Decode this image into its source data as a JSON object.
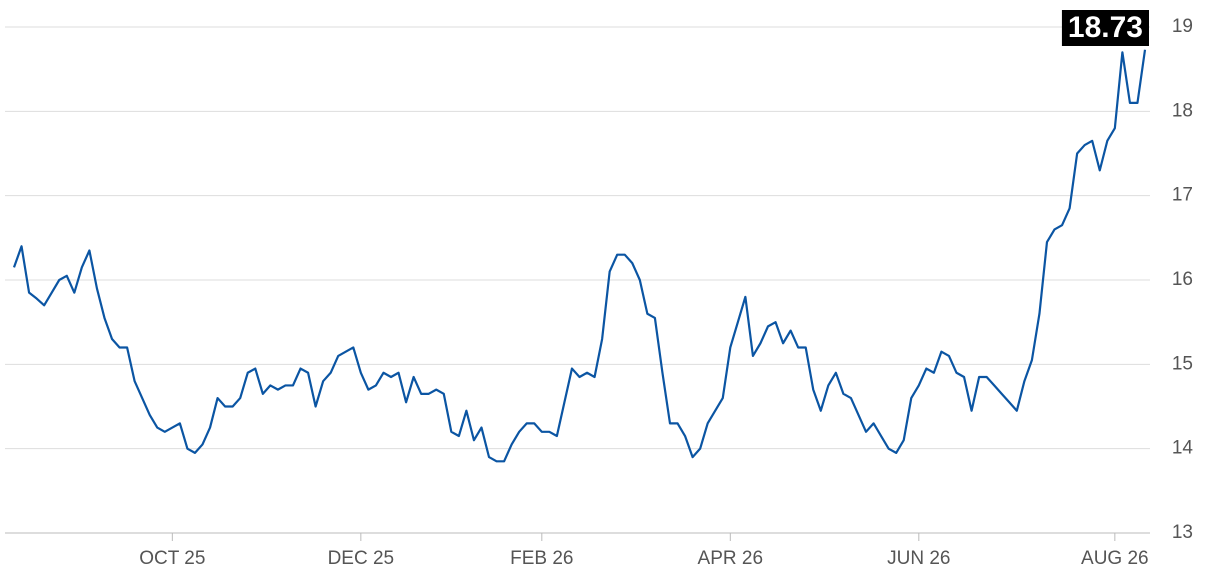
{
  "chart_data": {
    "type": "line",
    "categories": [
      null,
      null,
      null,
      null,
      null,
      null,
      null,
      null,
      null,
      null,
      null,
      null,
      null,
      null,
      null,
      null,
      null,
      null,
      null,
      null,
      null,
      "OCT 25",
      null,
      null,
      null,
      null,
      null,
      null,
      null,
      null,
      null,
      null,
      null,
      null,
      null,
      null,
      null,
      null,
      null,
      null,
      null,
      null,
      null,
      null,
      null,
      null,
      "DEC 25",
      null,
      null,
      null,
      null,
      null,
      null,
      null,
      null,
      null,
      null,
      null,
      null,
      null,
      null,
      null,
      null,
      null,
      null,
      null,
      null,
      null,
      null,
      null,
      "FEB 26",
      null,
      null,
      null,
      null,
      null,
      null,
      null,
      null,
      null,
      null,
      null,
      null,
      null,
      null,
      null,
      null,
      null,
      null,
      null,
      null,
      null,
      null,
      null,
      null,
      "APR 26",
      null,
      null,
      null,
      null,
      null,
      null,
      null,
      null,
      null,
      null,
      null,
      null,
      null,
      null,
      null,
      null,
      null,
      null,
      null,
      null,
      null,
      null,
      null,
      null,
      "JUN 26",
      null,
      null,
      null,
      null,
      null,
      null,
      null,
      null,
      null,
      null,
      null,
      null,
      null,
      null,
      null,
      null,
      null,
      null,
      null,
      null,
      null,
      null,
      null,
      null,
      null,
      "AUG 26",
      null,
      null,
      null,
      null
    ],
    "series": [
      {
        "color": "#0b55a3",
        "values": [
          16.15,
          16.4,
          15.85,
          15.78,
          15.7,
          15.85,
          16.0,
          16.05,
          15.85,
          16.15,
          16.35,
          15.9,
          15.55,
          15.3,
          15.2,
          15.2,
          14.8,
          14.6,
          14.4,
          14.25,
          14.2,
          14.25,
          14.3,
          14.0,
          13.95,
          14.05,
          14.25,
          14.6,
          14.5,
          14.5,
          14.6,
          14.9,
          14.95,
          14.65,
          14.75,
          14.7,
          14.75,
          14.75,
          14.95,
          14.9,
          14.5,
          14.8,
          14.9,
          15.1,
          15.15,
          15.2,
          14.9,
          14.7,
          14.75,
          14.9,
          14.85,
          14.9,
          14.55,
          14.85,
          14.65,
          14.65,
          14.7,
          14.65,
          14.2,
          14.15,
          14.45,
          14.1,
          14.25,
          13.9,
          13.85,
          13.85,
          14.05,
          14.2,
          14.3,
          14.3,
          14.2,
          14.2,
          14.15,
          14.55,
          14.95,
          14.85,
          14.9,
          14.85,
          15.3,
          16.1,
          16.3,
          16.3,
          16.2,
          16.0,
          15.6,
          15.55,
          14.9,
          14.3,
          14.3,
          14.15,
          13.9,
          14.0,
          14.3,
          14.45,
          14.6,
          15.2,
          15.5,
          15.8,
          15.1,
          15.25,
          15.45,
          15.5,
          15.25,
          15.4,
          15.2,
          15.2,
          14.7,
          14.45,
          14.75,
          14.9,
          14.65,
          14.6,
          14.4,
          14.2,
          14.3,
          14.15,
          14.0,
          13.95,
          14.1,
          14.6,
          14.75,
          14.95,
          14.9,
          15.15,
          15.1,
          14.9,
          14.85,
          14.45,
          14.85,
          14.85,
          14.75,
          14.65,
          14.55,
          14.45,
          14.8,
          15.05,
          15.6,
          16.45,
          16.6,
          16.65,
          16.85,
          17.5,
          17.6,
          17.65,
          17.3,
          17.65,
          17.8,
          18.7,
          18.1,
          18.1,
          18.73
        ]
      }
    ],
    "ylim": [
      13,
      19
    ],
    "yticks": [
      13,
      14,
      15,
      16,
      17,
      18,
      19
    ],
    "grid": true
  }
}
